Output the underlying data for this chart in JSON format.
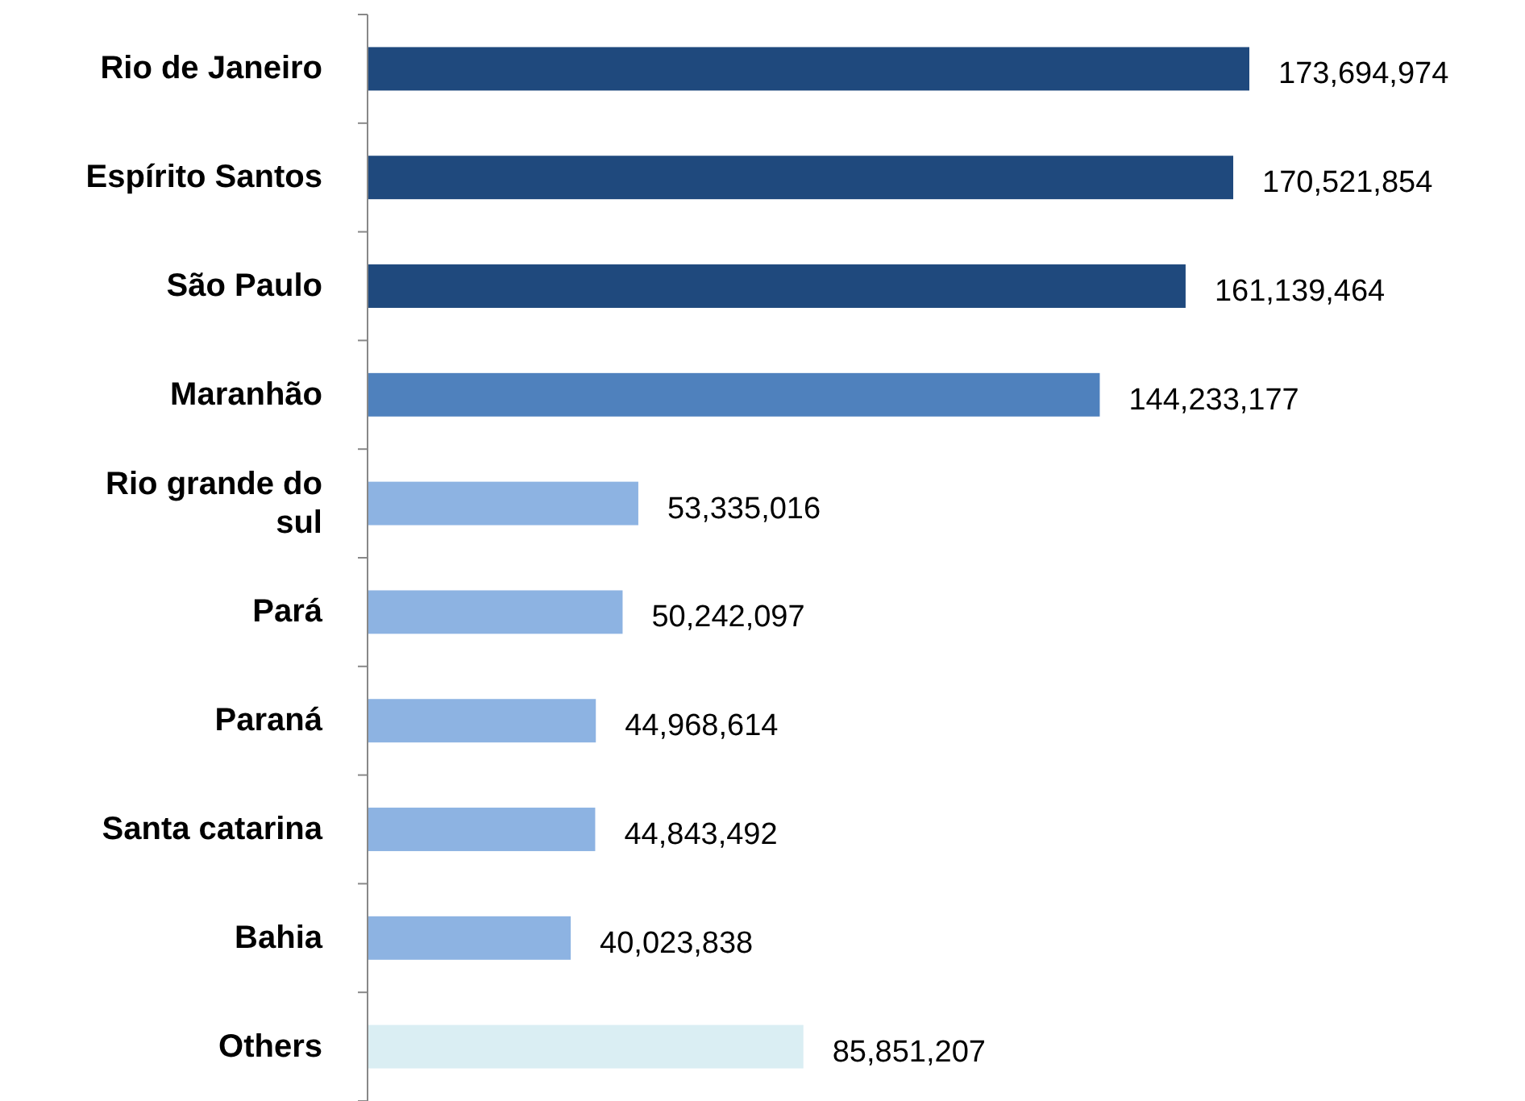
{
  "chart_data": {
    "type": "bar",
    "orientation": "horizontal",
    "value_labels": [
      "173,694,974",
      "170,521,854",
      "161,139,464",
      "144,233,177",
      "53,335,016",
      "50,242,097",
      "44,968,614",
      "44,843,492",
      "40,023,838",
      "85,851,207"
    ],
    "categories": [
      "Rio de Janeiro",
      "Espírito Santos",
      "São Paulo",
      "Maranhão",
      "Rio grande do sul",
      "Pará",
      "Paraná",
      "Santa catarina",
      "Bahia",
      "Others"
    ],
    "values": [
      173694974,
      170521854,
      161139464,
      144233177,
      53335016,
      50242097,
      44968614,
      44843492,
      40023838,
      85851207
    ],
    "colors": [
      "#1f497d",
      "#1f497d",
      "#1f497d",
      "#4f81bd",
      "#8db3e2",
      "#8db3e2",
      "#8db3e2",
      "#8db3e2",
      "#8db3e2",
      "#daeef3"
    ]
  }
}
